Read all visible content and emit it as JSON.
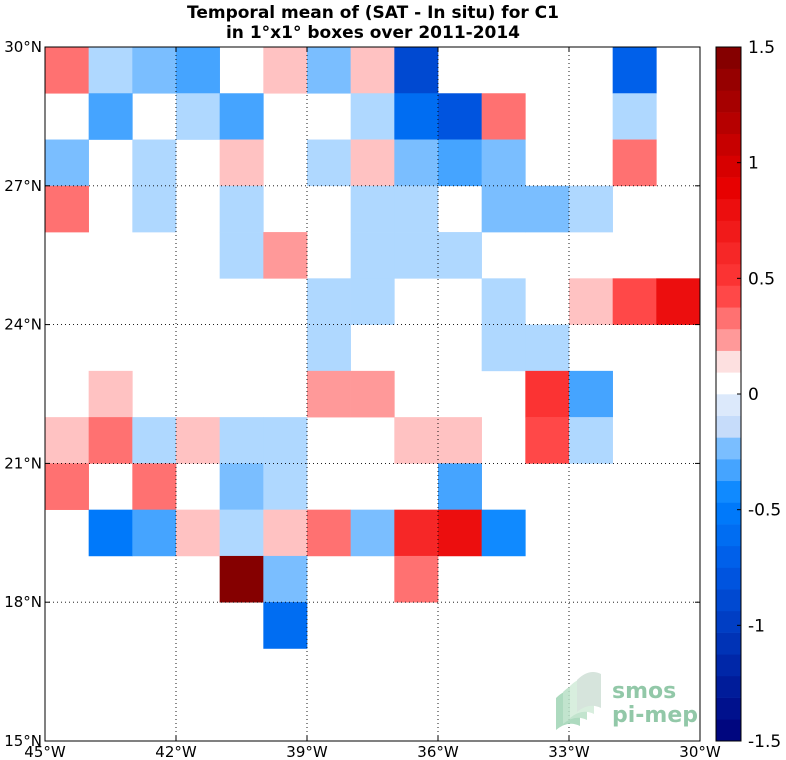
{
  "chart_data": {
    "type": "heatmap",
    "title": "Temporal mean of (SAT - In situ) for C1",
    "subtitle": "in 1°x1° boxes over 2011-2014",
    "x_range": [
      -45,
      -30
    ],
    "y_range": [
      15,
      30
    ],
    "x_ticks": [
      {
        "v": -45,
        "label": "45°W"
      },
      {
        "v": -42,
        "label": "42°W"
      },
      {
        "v": -39,
        "label": "39°W"
      },
      {
        "v": -36,
        "label": "36°W"
      },
      {
        "v": -33,
        "label": "33°W"
      },
      {
        "v": -30,
        "label": "30°W"
      }
    ],
    "y_ticks": [
      {
        "v": 30,
        "label": "30°N"
      },
      {
        "v": 27,
        "label": "27°N"
      },
      {
        "v": 24,
        "label": "24°N"
      },
      {
        "v": 21,
        "label": "21°N"
      },
      {
        "v": 18,
        "label": "18°N"
      },
      {
        "v": 15,
        "label": "15°N"
      }
    ],
    "grid": true,
    "color_range": [
      -1.5,
      1.5
    ],
    "color_levels": 32,
    "colorbar_ticks": [
      {
        "v": 1.5,
        "label": "1.5"
      },
      {
        "v": 1,
        "label": "1"
      },
      {
        "v": 0.5,
        "label": "0.5"
      },
      {
        "v": 0,
        "label": "0"
      },
      {
        "v": -0.5,
        "label": "-0.5"
      },
      {
        "v": -1,
        "label": "-1"
      },
      {
        "v": -1.5,
        "label": "-1.5"
      }
    ],
    "cells": [
      {
        "lon": -45,
        "lat": 29,
        "v": 0.35
      },
      {
        "lon": -44,
        "lat": 29,
        "v": -0.12
      },
      {
        "lon": -43,
        "lat": 29,
        "v": -0.25
      },
      {
        "lon": -42,
        "lat": 29,
        "v": -0.35
      },
      {
        "lon": -40,
        "lat": 29,
        "v": 0.15
      },
      {
        "lon": -39,
        "lat": 29,
        "v": -0.25
      },
      {
        "lon": -38,
        "lat": 29,
        "v": 0.15
      },
      {
        "lon": -37,
        "lat": 29,
        "v": -0.9
      },
      {
        "lon": -32,
        "lat": 29,
        "v": -0.7
      },
      {
        "lon": -44,
        "lat": 28,
        "v": -0.3
      },
      {
        "lon": -42,
        "lat": 28,
        "v": -0.12
      },
      {
        "lon": -41,
        "lat": 28,
        "v": -0.3
      },
      {
        "lon": -38,
        "lat": 28,
        "v": -0.12
      },
      {
        "lon": -37,
        "lat": 28,
        "v": -0.65
      },
      {
        "lon": -36,
        "lat": 28,
        "v": -0.8
      },
      {
        "lon": -35,
        "lat": 28,
        "v": 0.3
      },
      {
        "lon": -32,
        "lat": 28,
        "v": -0.12
      },
      {
        "lon": -45,
        "lat": 27,
        "v": -0.2
      },
      {
        "lon": -43,
        "lat": 27,
        "v": -0.12
      },
      {
        "lon": -41,
        "lat": 27,
        "v": 0.15
      },
      {
        "lon": -39,
        "lat": 27,
        "v": -0.12
      },
      {
        "lon": -38,
        "lat": 27,
        "v": 0.15
      },
      {
        "lon": -37,
        "lat": 27,
        "v": -0.25
      },
      {
        "lon": -36,
        "lat": 27,
        "v": -0.3
      },
      {
        "lon": -35,
        "lat": 27,
        "v": -0.2
      },
      {
        "lon": -32,
        "lat": 27,
        "v": 0.3
      },
      {
        "lon": -45,
        "lat": 26,
        "v": 0.3
      },
      {
        "lon": -43,
        "lat": 26,
        "v": -0.12
      },
      {
        "lon": -41,
        "lat": 26,
        "v": -0.12
      },
      {
        "lon": -38,
        "lat": 26,
        "v": -0.12
      },
      {
        "lon": -37,
        "lat": 26,
        "v": -0.12
      },
      {
        "lon": -35,
        "lat": 26,
        "v": -0.2
      },
      {
        "lon": -34,
        "lat": 26,
        "v": -0.2
      },
      {
        "lon": -33,
        "lat": 26,
        "v": -0.12
      },
      {
        "lon": -41,
        "lat": 25,
        "v": -0.12
      },
      {
        "lon": -40,
        "lat": 25,
        "v": 0.2
      },
      {
        "lon": -38,
        "lat": 25,
        "v": -0.12
      },
      {
        "lon": -37,
        "lat": 25,
        "v": -0.12
      },
      {
        "lon": -36,
        "lat": 25,
        "v": -0.12
      },
      {
        "lon": -39,
        "lat": 24,
        "v": -0.12
      },
      {
        "lon": -38,
        "lat": 24,
        "v": -0.12
      },
      {
        "lon": -35,
        "lat": 24,
        "v": -0.12
      },
      {
        "lon": -33,
        "lat": 24,
        "v": 0.15
      },
      {
        "lon": -32,
        "lat": 24,
        "v": 0.4
      },
      {
        "lon": -31,
        "lat": 24,
        "v": 0.75
      },
      {
        "lon": -39,
        "lat": 23,
        "v": -0.12
      },
      {
        "lon": -35,
        "lat": 23,
        "v": -0.12
      },
      {
        "lon": -34,
        "lat": 23,
        "v": -0.12
      },
      {
        "lon": -44,
        "lat": 22,
        "v": 0.15
      },
      {
        "lon": -39,
        "lat": 22,
        "v": 0.2
      },
      {
        "lon": -38,
        "lat": 22,
        "v": 0.2
      },
      {
        "lon": -34,
        "lat": 22,
        "v": 0.55
      },
      {
        "lon": -33,
        "lat": 22,
        "v": -0.3
      },
      {
        "lon": -45,
        "lat": 21,
        "v": 0.15
      },
      {
        "lon": -44,
        "lat": 21,
        "v": 0.3
      },
      {
        "lon": -43,
        "lat": 21,
        "v": -0.12
      },
      {
        "lon": -42,
        "lat": 21,
        "v": 0.15
      },
      {
        "lon": -41,
        "lat": 21,
        "v": -0.12
      },
      {
        "lon": -40,
        "lat": 21,
        "v": -0.12
      },
      {
        "lon": -37,
        "lat": 21,
        "v": 0.15
      },
      {
        "lon": -36,
        "lat": 21,
        "v": 0.15
      },
      {
        "lon": -34,
        "lat": 21,
        "v": 0.4
      },
      {
        "lon": -33,
        "lat": 21,
        "v": -0.12
      },
      {
        "lon": -45,
        "lat": 20,
        "v": 0.3
      },
      {
        "lon": -43,
        "lat": 20,
        "v": 0.35
      },
      {
        "lon": -41,
        "lat": 20,
        "v": -0.25
      },
      {
        "lon": -40,
        "lat": 20,
        "v": -0.12
      },
      {
        "lon": -36,
        "lat": 20,
        "v": -0.35
      },
      {
        "lon": -44,
        "lat": 19,
        "v": -0.55
      },
      {
        "lon": -43,
        "lat": 19,
        "v": -0.3
      },
      {
        "lon": -42,
        "lat": 19,
        "v": 0.15
      },
      {
        "lon": -41,
        "lat": 19,
        "v": -0.12
      },
      {
        "lon": -40,
        "lat": 19,
        "v": 0.15
      },
      {
        "lon": -39,
        "lat": 19,
        "v": 0.3
      },
      {
        "lon": -38,
        "lat": 19,
        "v": -0.2
      },
      {
        "lon": -37,
        "lat": 19,
        "v": 0.6
      },
      {
        "lon": -36,
        "lat": 19,
        "v": 0.75
      },
      {
        "lon": -35,
        "lat": 19,
        "v": -0.4
      },
      {
        "lon": -41,
        "lat": 18,
        "v": 1.5
      },
      {
        "lon": -40,
        "lat": 18,
        "v": -0.2
      },
      {
        "lon": -37,
        "lat": 18,
        "v": 0.3
      },
      {
        "lon": -40,
        "lat": 17,
        "v": -0.6
      }
    ]
  },
  "watermark": {
    "line1": "smos",
    "line2": "pi-mep"
  }
}
